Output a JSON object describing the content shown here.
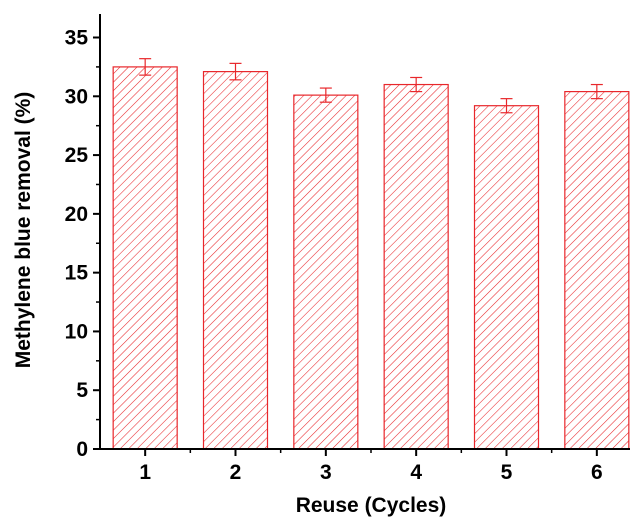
{
  "chart_data": {
    "type": "bar",
    "title": "",
    "xlabel": "Reuse (Cycles)",
    "ylabel": "Methylene blue removal (%)",
    "categories": [
      "1",
      "2",
      "3",
      "4",
      "5",
      "6"
    ],
    "values": [
      32.5,
      32.1,
      30.1,
      31.0,
      29.2,
      30.4
    ],
    "error": [
      0.7,
      0.7,
      0.6,
      0.6,
      0.6,
      0.6
    ],
    "ylim": [
      0,
      37
    ],
    "yticks": [
      "0",
      "5",
      "10",
      "15",
      "20",
      "25",
      "30",
      "35"
    ],
    "grid": false,
    "legend": "none",
    "bar_style": "diagonal-hatch",
    "bar_color": "#e8272b"
  }
}
